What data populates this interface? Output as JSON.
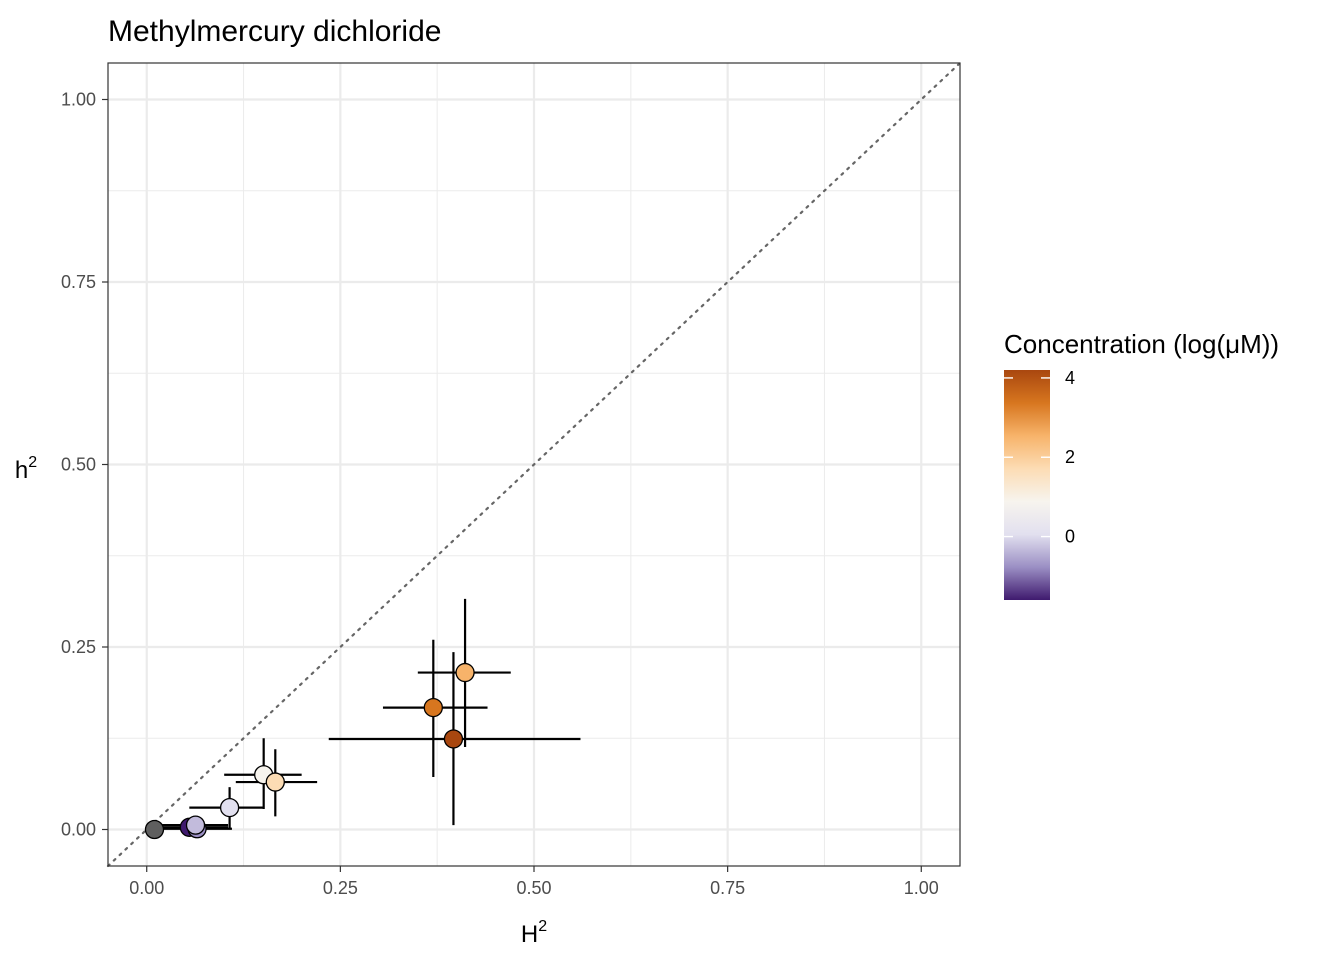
{
  "chart_data": {
    "type": "scatter",
    "title": "Methylmercury dichloride",
    "xlabel": {
      "base": "H",
      "sup": "2"
    },
    "ylabel": {
      "base": "h",
      "sup": "2"
    },
    "xlim": [
      -0.05,
      1.05
    ],
    "ylim": [
      -0.05,
      1.05
    ],
    "x_ticks": [
      0.0,
      0.25,
      0.5,
      0.75,
      1.0
    ],
    "x_tick_labels": [
      "0.00",
      "0.25",
      "0.50",
      "0.75",
      "1.00"
    ],
    "y_ticks": [
      0.0,
      0.25,
      0.5,
      0.75,
      1.0
    ],
    "y_tick_labels": [
      "0.00",
      "0.25",
      "0.50",
      "0.75",
      "1.00"
    ],
    "minor_ticks": [
      0.125,
      0.375,
      0.625,
      0.875
    ],
    "grid": true,
    "reference_line": {
      "type": "identity",
      "style": "dotted",
      "color": "#666666"
    },
    "points": [
      {
        "H2": 0.055,
        "h2": 0.003,
        "H2_low": 0.0,
        "H2_high": 0.105,
        "h2_low": 0.0,
        "h2_high": 0.006,
        "conc": -1.6,
        "color": "#3f1a6e"
      },
      {
        "H2": 0.065,
        "h2": 0.001,
        "H2_low": 0.0,
        "H2_high": 0.11,
        "h2_low": 0.0,
        "h2_high": 0.004,
        "conc": -0.6,
        "color": "#9b8fc4"
      },
      {
        "H2": 0.063,
        "h2": 0.006,
        "H2_low": 0.0,
        "H2_high": 0.105,
        "h2_low": 0.0,
        "h2_high": 0.01,
        "conc": -0.3,
        "color": "#c2bbdc"
      },
      {
        "H2": 0.107,
        "h2": 0.03,
        "H2_low": 0.055,
        "H2_high": 0.15,
        "h2_low": 0.0,
        "h2_high": 0.058,
        "conc": 0.3,
        "color": "#e2e0ef"
      },
      {
        "H2": 0.151,
        "h2": 0.075,
        "H2_low": 0.1,
        "H2_high": 0.2,
        "h2_low": 0.028,
        "h2_high": 0.125,
        "conc": 1.5,
        "color": "#f7f4ee"
      },
      {
        "H2": 0.166,
        "h2": 0.065,
        "H2_low": 0.115,
        "H2_high": 0.22,
        "h2_low": 0.018,
        "h2_high": 0.11,
        "conc": 2.0,
        "color": "#fcdcb4"
      },
      {
        "H2": 0.411,
        "h2": 0.215,
        "H2_low": 0.35,
        "H2_high": 0.47,
        "h2_low": 0.113,
        "h2_high": 0.316,
        "conc": 2.9,
        "color": "#f7b36a"
      },
      {
        "H2": 0.37,
        "h2": 0.167,
        "H2_low": 0.305,
        "H2_high": 0.44,
        "h2_low": 0.072,
        "h2_high": 0.26,
        "conc": 3.6,
        "color": "#d7761f"
      },
      {
        "H2": 0.396,
        "h2": 0.124,
        "H2_low": 0.235,
        "H2_high": 0.56,
        "h2_low": 0.006,
        "h2_high": 0.243,
        "conc": 4.2,
        "color": "#a9470f"
      },
      {
        "H2": 0.01,
        "h2": 0.0,
        "H2_low": 0.0,
        "H2_high": 0.02,
        "h2_low": 0.0,
        "h2_high": 0.0,
        "conc": null,
        "color": "#5f5f5f"
      }
    ],
    "legend": {
      "title": "Concentration (log(μM))",
      "position": "right",
      "range": [
        -1.6,
        4.2
      ],
      "ticks": [
        0,
        2,
        4
      ],
      "tick_labels": [
        "0",
        "2",
        "4"
      ],
      "gradient": [
        "#3f1a6e",
        "#9b8fc4",
        "#e2e0ef",
        "#f7f4ee",
        "#fcdcb4",
        "#f7b36a",
        "#d7761f",
        "#a9470f"
      ]
    }
  }
}
